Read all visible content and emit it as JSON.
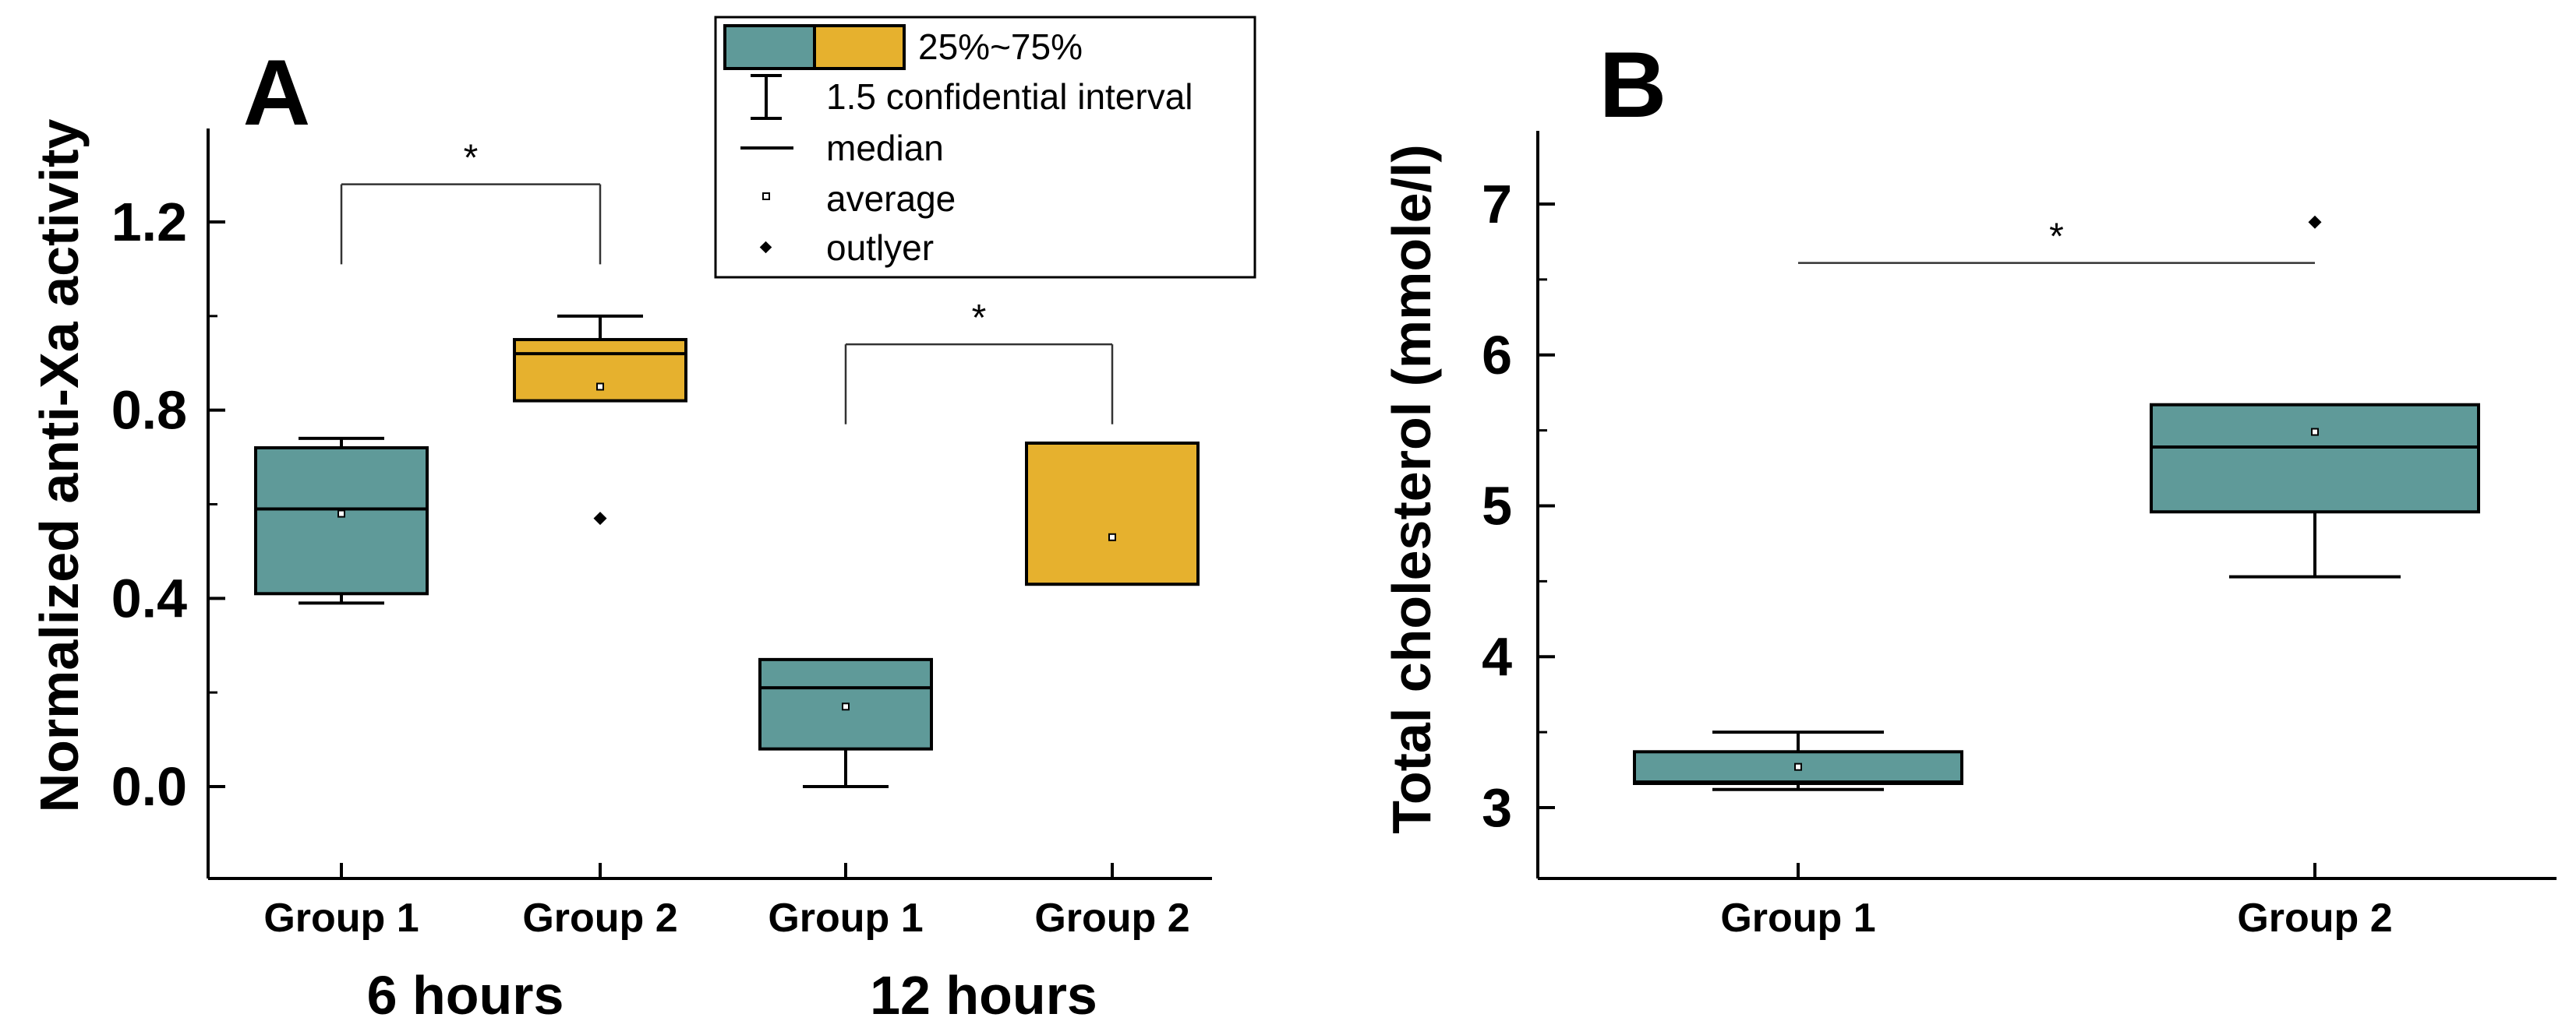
{
  "colors": {
    "group1_fill": "#5f9a99",
    "group2_fill": "#e6b12e",
    "stroke": "#000000",
    "background": "#ffffff"
  },
  "legend": {
    "box_label": "25%~75%",
    "whisker_label": "1.5 confidential interval",
    "median_label": "median",
    "average_label": "average",
    "outlier_label": "outlyer"
  },
  "chart_data": [
    {
      "panel_label": "A",
      "type": "box",
      "title": "",
      "xlabel": "",
      "ylabel": "Normalized anti-Xa activity",
      "ylim": [
        -0.2,
        1.4
      ],
      "yticks": [
        0.0,
        0.4,
        0.8,
        1.2
      ],
      "ytick_labels": [
        "0.0",
        "0.4",
        "0.8",
        "1.2"
      ],
      "categories": [
        "Group 1",
        "Group 2",
        "Group 1",
        "Group 2"
      ],
      "category_groups": [
        {
          "label": "6 hours",
          "indices": [
            0,
            1
          ]
        },
        {
          "label": "12 hours",
          "indices": [
            2,
            3
          ]
        }
      ],
      "boxes": [
        {
          "category": "Group 1",
          "time": "6 hours",
          "color_key": "group1_fill",
          "whisker_low": 0.39,
          "q1": 0.41,
          "median": 0.59,
          "q3": 0.72,
          "whisker_high": 0.74,
          "mean": 0.58,
          "outliers": []
        },
        {
          "category": "Group 2",
          "time": "6 hours",
          "color_key": "group2_fill",
          "whisker_low": 0.82,
          "q1": 0.82,
          "median": 0.92,
          "q3": 0.95,
          "whisker_high": 1.0,
          "mean": 0.85,
          "outliers": [
            0.57
          ]
        },
        {
          "category": "Group 1",
          "time": "12 hours",
          "color_key": "group1_fill",
          "whisker_low": 0.0,
          "q1": 0.08,
          "median": 0.21,
          "q3": 0.27,
          "whisker_high": 0.27,
          "mean": 0.17,
          "outliers": []
        },
        {
          "category": "Group 2",
          "time": "12 hours",
          "color_key": "group2_fill",
          "whisker_low": 0.43,
          "q1": 0.43,
          "median": 0.73,
          "q3": 0.73,
          "whisker_high": 0.73,
          "mean": 0.53,
          "outliers": []
        }
      ],
      "significance": [
        {
          "from": 0,
          "to": 1,
          "label": "*",
          "y": 1.28,
          "left_drop": 1.11,
          "right_drop": 1.11
        },
        {
          "from": 2,
          "to": 3,
          "label": "*",
          "y": 0.94,
          "left_drop": 0.77,
          "right_drop": 0.77
        }
      ]
    },
    {
      "panel_label": "B",
      "type": "box",
      "title": "",
      "xlabel": "",
      "ylabel": "Total cholesterol (mmole/l)",
      "ylim": [
        2.55,
        7.5
      ],
      "yticks": [
        3,
        4,
        5,
        6,
        7
      ],
      "ytick_labels": [
        "3",
        "4",
        "5",
        "6",
        "7"
      ],
      "categories": [
        "Group 1",
        "Group 2"
      ],
      "boxes": [
        {
          "category": "Group 1",
          "color_key": "group1_fill",
          "whisker_low": 3.12,
          "q1": 3.16,
          "median": 3.17,
          "q3": 3.37,
          "whisker_high": 3.5,
          "mean": 3.27,
          "outliers": []
        },
        {
          "category": "Group 2",
          "color_key": "group1_fill",
          "whisker_low": 4.53,
          "q1": 4.96,
          "median": 5.39,
          "q3": 5.67,
          "whisker_high": 5.67,
          "mean": 5.49,
          "outliers": [
            6.88
          ]
        }
      ],
      "significance": [
        {
          "from": 0,
          "to": 1,
          "label": "*",
          "y": 6.61
        }
      ]
    }
  ]
}
